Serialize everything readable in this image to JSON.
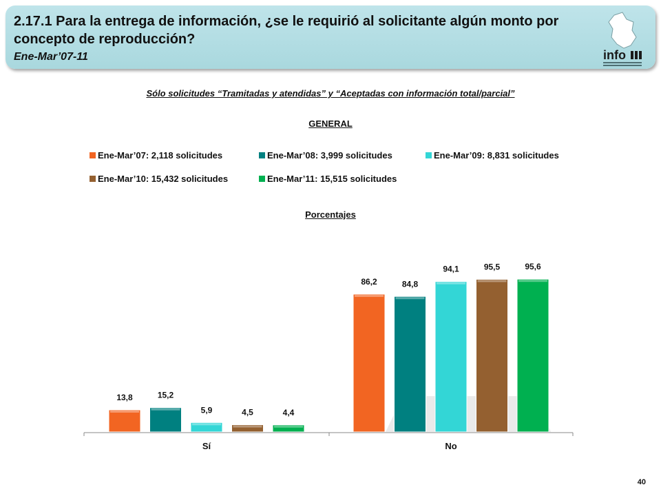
{
  "header": {
    "title": "2.17.1 Para la entrega de información, ¿se le requirió al solicitante algún monto por concepto de reproducción?",
    "period": "Ene-Mar’07-11",
    "logo_text": "info"
  },
  "subtitle": "Sólo solicitudes “Tramitadas y atendidas” y “Aceptadas con información total/parcial”",
  "section_general": "GENERAL",
  "section_percent": "Porcentajes",
  "page_number": "40",
  "colors": {
    "header_bg": "#a9d8de",
    "series": [
      "#f26522",
      "#008080",
      "#33d6d6",
      "#946030",
      "#00b050"
    ]
  },
  "chart_data": {
    "type": "bar",
    "categories": [
      "Sí",
      "No"
    ],
    "series": [
      {
        "name": "Ene-Mar’07: 2,118 solicitudes",
        "values": [
          13.8,
          86.2
        ],
        "labels": [
          "13,8",
          "86,2"
        ]
      },
      {
        "name": "Ene-Mar’08: 3,999 solicitudes",
        "values": [
          15.2,
          84.8
        ],
        "labels": [
          "15,2",
          "84,8"
        ]
      },
      {
        "name": "Ene-Mar’09: 8,831 solicitudes",
        "values": [
          5.9,
          94.1
        ],
        "labels": [
          "5,9",
          "94,1"
        ]
      },
      {
        "name": "Ene-Mar’10: 15,432 solicitudes",
        "values": [
          4.5,
          95.5
        ],
        "labels": [
          "4,5",
          "95,5"
        ]
      },
      {
        "name": "Ene-Mar’11: 15,515 solicitudes",
        "values": [
          4.4,
          95.6
        ],
        "labels": [
          "4,4",
          "95,6"
        ]
      }
    ],
    "ylim": [
      0,
      100
    ],
    "legend_position": "top",
    "grid": false
  }
}
